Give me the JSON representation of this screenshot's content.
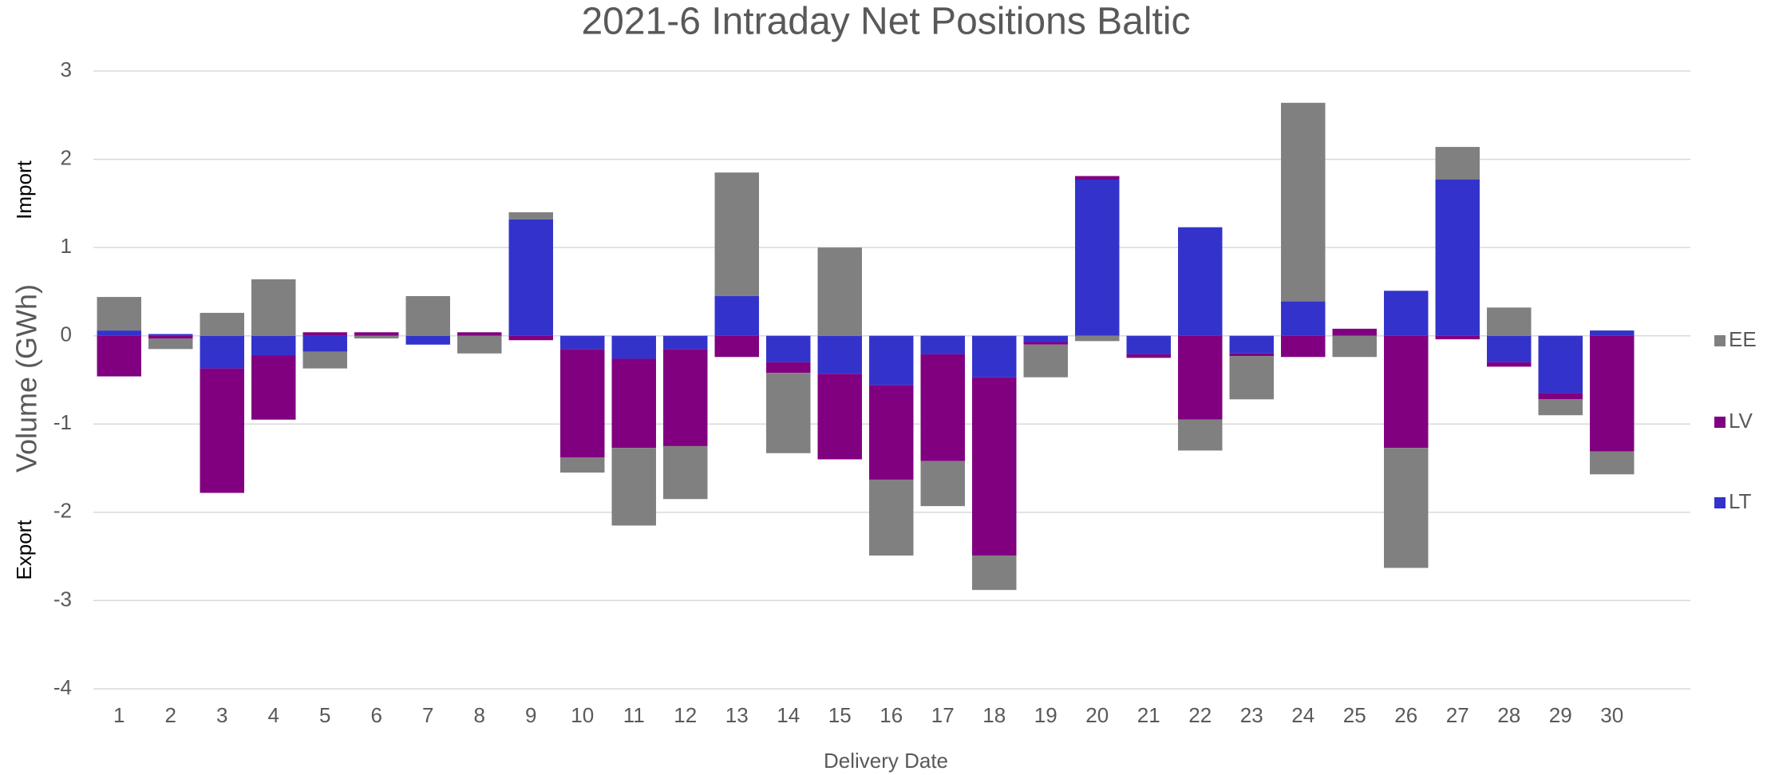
{
  "chart_data": {
    "type": "stacked_bar",
    "title": "2021-6 Intraday Net Positions Baltic",
    "x_label": "Delivery Date",
    "y_label": "Volume (GWh)",
    "annotations": [
      "Import",
      "Export"
    ],
    "categories": [
      "1",
      "2",
      "3",
      "4",
      "5",
      "6",
      "7",
      "8",
      "9",
      "10",
      "11",
      "12",
      "13",
      "14",
      "15",
      "16",
      "17",
      "18",
      "19",
      "20",
      "21",
      "22",
      "23",
      "24",
      "25",
      "26",
      "27",
      "28",
      "29",
      "30"
    ],
    "series": [
      {
        "name": "LT",
        "color": "#3333cc",
        "values": [
          0.06,
          0.02,
          -0.37,
          -0.22,
          -0.18,
          0,
          -0.1,
          0,
          1.32,
          -0.15,
          -0.26,
          -0.15,
          0.45,
          -0.3,
          -0.43,
          -0.56,
          -0.21,
          -0.47,
          -0.07,
          1.77,
          -0.21,
          1.23,
          -0.2,
          0.39,
          0,
          0.51,
          1.77,
          -0.3,
          -0.65,
          0.06
        ]
      },
      {
        "name": "LV",
        "color": "#800080",
        "values": [
          -0.46,
          -0.03,
          -1.41,
          -0.73,
          0.04,
          0.04,
          0,
          0.04,
          -0.05,
          -1.23,
          -1.01,
          -1.1,
          -0.24,
          -0.12,
          -0.97,
          -1.07,
          -1.21,
          -2.02,
          -0.03,
          0.04,
          -0.04,
          -0.95,
          -0.03,
          -0.24,
          0.08,
          -1.27,
          -0.04,
          -0.05,
          -0.07,
          -1.31
        ]
      },
      {
        "name": "EE",
        "color": "#808080",
        "values": [
          0.38,
          -0.12,
          0.26,
          0.64,
          -0.19,
          -0.03,
          0.45,
          -0.2,
          0.08,
          -0.17,
          -0.88,
          -0.6,
          1.4,
          -0.91,
          1.0,
          -0.86,
          -0.51,
          -0.39,
          -0.37,
          -0.06,
          0,
          -0.35,
          -0.49,
          2.25,
          -0.24,
          -1.36,
          0.37,
          0.32,
          -0.18,
          -0.26
        ]
      }
    ],
    "ylim": [
      -4,
      3
    ],
    "yticks": [
      -4,
      -3,
      -2,
      -1,
      0,
      1,
      2,
      3
    ],
    "grid": true,
    "legend": "right"
  }
}
